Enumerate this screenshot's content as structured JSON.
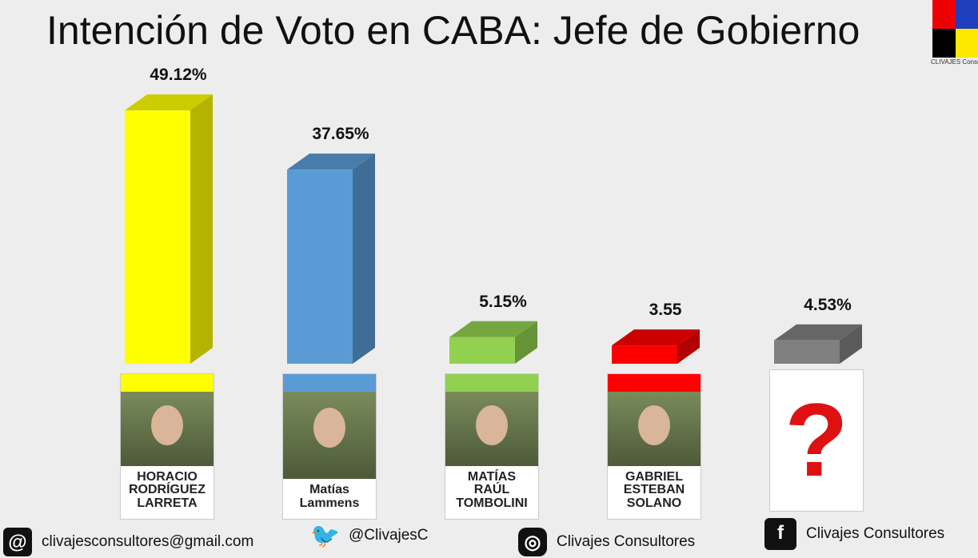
{
  "chart_data": {
    "type": "bar3d",
    "title": "Intención de Voto en CABA: Jefe de Gobierno",
    "categories": [
      "HORACIO RODRÍGUEZ LARRETA",
      "Matías Lammens",
      "MATÍAS RAÚL TOMBOLINI",
      "GABRIEL ESTEBAN SOLANO",
      null
    ],
    "values": [
      49.12,
      37.65,
      5.15,
      3.55,
      4.53
    ],
    "value_labels": [
      "49.12%",
      "37.65%",
      "5.15%",
      "3.55",
      "4.53%"
    ],
    "colors": [
      "#ffff00",
      "#5b9bd5",
      "#92d050",
      "#ff0000",
      "#808080"
    ]
  },
  "logo": "CLIVAJES Consultores",
  "footer": {
    "email": "clivajesconsultores@gmail.com",
    "twitter": "@ClivajesC",
    "instagram": "Clivajes Consultores",
    "facebook": "Clivajes Consultores"
  }
}
